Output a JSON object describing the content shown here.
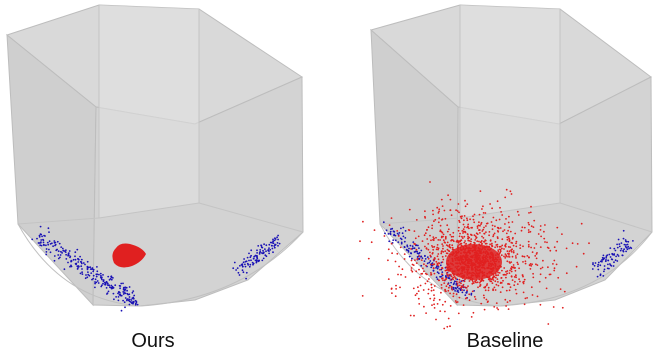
{
  "panels": [
    {
      "caption": "Ours"
    },
    {
      "caption": "Baseline"
    }
  ],
  "colors": {
    "cube_face_back": "#d4d4d4",
    "cube_face_light": "#dcdcdc",
    "cube_face_dark": "#c6c6c6",
    "cube_edge": "#bdbdbd",
    "blue_points": "#1a12b5",
    "red_points": "#e02020",
    "caption_text": "#111111"
  }
}
